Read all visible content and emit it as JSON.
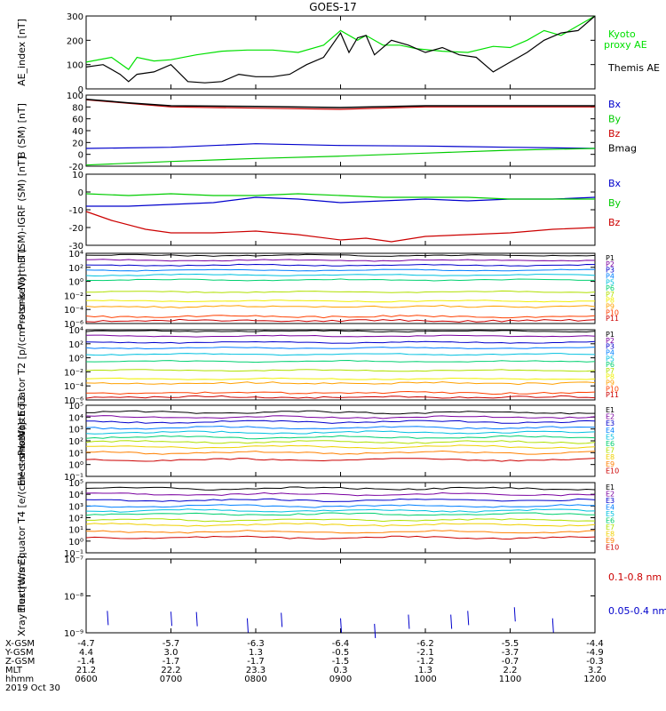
{
  "title": "GOES-17",
  "chart_data": [
    {
      "type": "line",
      "ylabel": "AE_index [nT]",
      "ylim": [
        0,
        300
      ],
      "yticks": [
        "0",
        "100",
        "200",
        "300"
      ],
      "series": [
        {
          "name": "Kyoto proxy AE",
          "color": "#00e000",
          "x": [
            6.0,
            6.3,
            6.5,
            6.6,
            6.8,
            7.0,
            7.3,
            7.6,
            7.9,
            8.2,
            8.5,
            8.8,
            9.0,
            9.2,
            9.3,
            9.5,
            9.7,
            9.9,
            10.2,
            10.5,
            10.8,
            11.0,
            11.2,
            11.4,
            11.6,
            11.8,
            12.0
          ],
          "values": [
            110,
            130,
            80,
            130,
            115,
            120,
            140,
            155,
            160,
            160,
            150,
            180,
            240,
            200,
            220,
            180,
            180,
            165,
            155,
            150,
            175,
            170,
            200,
            240,
            220,
            260,
            300
          ]
        },
        {
          "name": "Themis AE",
          "color": "#000000",
          "x": [
            6.0,
            6.2,
            6.4,
            6.5,
            6.6,
            6.8,
            7.0,
            7.2,
            7.4,
            7.6,
            7.8,
            8.0,
            8.2,
            8.4,
            8.6,
            8.8,
            9.0,
            9.1,
            9.2,
            9.3,
            9.4,
            9.6,
            9.8,
            10.0,
            10.2,
            10.4,
            10.6,
            10.8,
            11.0,
            11.2,
            11.4,
            11.6,
            11.8,
            12.0
          ],
          "values": [
            90,
            100,
            60,
            30,
            60,
            70,
            100,
            30,
            25,
            30,
            60,
            50,
            50,
            60,
            100,
            130,
            230,
            150,
            210,
            220,
            140,
            200,
            180,
            150,
            170,
            140,
            130,
            70,
            110,
            150,
            200,
            230,
            240,
            300
          ]
        }
      ],
      "legend": [
        "Kyoto proxy AE",
        "Themis AE"
      ]
    },
    {
      "type": "line",
      "ylabel": "B (SM) [nT]",
      "ylim": [
        -20,
        100
      ],
      "yticks": [
        "-20",
        "0",
        "20",
        "40",
        "60",
        "80",
        "100"
      ],
      "series": [
        {
          "name": "Bx",
          "color": "#0000cc",
          "x": [
            6,
            7,
            8,
            9,
            10,
            11,
            12
          ],
          "values": [
            10,
            12,
            18,
            15,
            14,
            12,
            10
          ]
        },
        {
          "name": "By",
          "color": "#00cc00",
          "x": [
            6,
            7,
            8,
            9,
            10,
            11,
            12
          ],
          "values": [
            -18,
            -12,
            -7,
            -3,
            2,
            7,
            10
          ]
        },
        {
          "name": "Bz",
          "color": "#cc0000",
          "x": [
            6,
            6.5,
            7,
            8,
            9,
            10,
            11,
            12
          ],
          "values": [
            92,
            86,
            80,
            78,
            76,
            80,
            80,
            80
          ]
        },
        {
          "name": "Bmag",
          "color": "#000000",
          "x": [
            6,
            6.5,
            7,
            8,
            9,
            10,
            11,
            12
          ],
          "values": [
            93,
            87,
            82,
            81,
            79,
            82,
            82,
            82
          ]
        }
      ]
    },
    {
      "type": "line",
      "ylabel": "B (SM)-IGRF (SM) [nT]",
      "ylim": [
        -30,
        10
      ],
      "yticks": [
        "-30",
        "-20",
        "-10",
        "0",
        "10"
      ],
      "series": [
        {
          "name": "Bx",
          "color": "#0000cc",
          "x": [
            6,
            6.5,
            7,
            7.5,
            8,
            8.5,
            9,
            9.5,
            10,
            10.5,
            11,
            11.5,
            12
          ],
          "values": [
            -8,
            -8,
            -7,
            -6,
            -3,
            -4,
            -6,
            -5,
            -4,
            -5,
            -4,
            -4,
            -3
          ]
        },
        {
          "name": "By",
          "color": "#00cc00",
          "x": [
            6,
            6.5,
            7,
            7.5,
            8,
            8.5,
            9,
            9.5,
            10,
            10.5,
            11,
            11.5,
            12
          ],
          "values": [
            -1,
            -2,
            -1,
            -2,
            -2,
            -1,
            -2,
            -3,
            -3,
            -3,
            -4,
            -4,
            -4
          ]
        },
        {
          "name": "Bz",
          "color": "#cc0000",
          "x": [
            6,
            6.3,
            6.7,
            7,
            7.5,
            8,
            8.5,
            9,
            9.3,
            9.6,
            10,
            10.5,
            11,
            11.5,
            12
          ],
          "values": [
            -11,
            -16,
            -21,
            -23,
            -23,
            -22,
            -24,
            -27,
            -26,
            -28,
            -25,
            -24,
            -23,
            -21,
            -20
          ]
        }
      ]
    },
    {
      "type": "line",
      "ylabel": "Protons North T1",
      "yscale": "log",
      "yrange_exp": [
        -6,
        4
      ],
      "yticks": [
        "10⁴",
        "10²",
        "10⁰",
        "10⁻²",
        "10⁻⁴",
        "10⁻⁶"
      ],
      "channels": [
        {
          "name": "P1",
          "color": "#000000",
          "level": 3.7
        },
        {
          "name": "P2",
          "color": "#7a00a0",
          "level": 3.0
        },
        {
          "name": "P3",
          "color": "#0000cc",
          "level": 2.3
        },
        {
          "name": "P4",
          "color": "#0080ff",
          "level": 1.6
        },
        {
          "name": "P5",
          "color": "#00c0e0",
          "level": 0.9
        },
        {
          "name": "P6",
          "color": "#00d070",
          "level": 0.2
        },
        {
          "name": "P7",
          "color": "#b0e000",
          "level": -1.5
        },
        {
          "name": "P8",
          "color": "#f0f000",
          "level": -2.8
        },
        {
          "name": "P9",
          "color": "#ffa000",
          "level": -3.6
        },
        {
          "name": "P10",
          "color": "#ff4000",
          "level": -5.0
        },
        {
          "name": "P11",
          "color": "#cc0000",
          "level": -5.6
        }
      ]
    },
    {
      "type": "line",
      "ylabel": "Protons Equator T2 [p/(cm²-s-sr-keV)]",
      "yscale": "log",
      "yrange_exp": [
        -6,
        4
      ],
      "yticks": [
        "10⁴",
        "10²",
        "10⁰",
        "10⁻²",
        "10⁻⁴",
        "10⁻⁶"
      ],
      "channels": [
        {
          "name": "P1",
          "color": "#000000",
          "level": 3.8
        },
        {
          "name": "P2",
          "color": "#7a00a0",
          "level": 3.1
        },
        {
          "name": "P3",
          "color": "#0000cc",
          "level": 2.2
        },
        {
          "name": "P4",
          "color": "#0080ff",
          "level": 1.4
        },
        {
          "name": "P5",
          "color": "#00c0e0",
          "level": 0.5
        },
        {
          "name": "P6",
          "color": "#00d070",
          "level": -0.5
        },
        {
          "name": "P7",
          "color": "#b0e000",
          "level": -1.8
        },
        {
          "name": "P8",
          "color": "#f0f000",
          "level": -3.0
        },
        {
          "name": "P9",
          "color": "#ffa000",
          "level": -3.6
        },
        {
          "name": "P10",
          "color": "#ff4000",
          "level": -5.0
        },
        {
          "name": "P11",
          "color": "#cc0000",
          "level": -5.6
        }
      ]
    },
    {
      "type": "line",
      "ylabel": "Electrons North T3",
      "yscale": "log",
      "yrange_exp": [
        -1,
        5
      ],
      "yticks": [
        "10⁵",
        "10⁴",
        "10³",
        "10²",
        "10¹",
        "10⁰",
        "10⁻¹"
      ],
      "channels": [
        {
          "name": "E1",
          "color": "#000000",
          "level": 4.4
        },
        {
          "name": "E2",
          "color": "#7a00a0",
          "level": 4.0
        },
        {
          "name": "E3",
          "color": "#0000cc",
          "level": 3.6
        },
        {
          "name": "E4",
          "color": "#0080ff",
          "level": 3.1
        },
        {
          "name": "E5",
          "color": "#00c0e0",
          "level": 2.7
        },
        {
          "name": "E6",
          "color": "#00d070",
          "level": 2.3
        },
        {
          "name": "E7",
          "color": "#b0e000",
          "level": 1.9
        },
        {
          "name": "E8",
          "color": "#f0d000",
          "level": 1.5
        },
        {
          "name": "E9",
          "color": "#ff8000",
          "level": 1.0
        },
        {
          "name": "E10",
          "color": "#cc0000",
          "level": 0.4
        }
      ]
    },
    {
      "type": "line",
      "ylabel": "Electrons Equator T4 [e/(cm²-s-sr-keV)]",
      "yscale": "log",
      "yrange_exp": [
        -1,
        5
      ],
      "yticks": [
        "10⁵",
        "10⁴",
        "10³",
        "10²",
        "10¹",
        "10⁰",
        "10⁻¹"
      ],
      "channels": [
        {
          "name": "E1",
          "color": "#000000",
          "level": 4.5
        },
        {
          "name": "E2",
          "color": "#7a00a0",
          "level": 4.0
        },
        {
          "name": "E3",
          "color": "#0000cc",
          "level": 3.5
        },
        {
          "name": "E4",
          "color": "#0080ff",
          "level": 3.0
        },
        {
          "name": "E5",
          "color": "#00c0e0",
          "level": 2.6
        },
        {
          "name": "E6",
          "color": "#00d070",
          "level": 2.3
        },
        {
          "name": "E7",
          "color": "#b0e000",
          "level": 1.8
        },
        {
          "name": "E8",
          "color": "#f0d000",
          "level": 1.4
        },
        {
          "name": "E9",
          "color": "#ff8000",
          "level": 0.8
        },
        {
          "name": "E10",
          "color": "#cc0000",
          "level": 0.3
        }
      ]
    },
    {
      "type": "scatter",
      "ylabel": "Xray flux [W/m²]",
      "yscale": "log",
      "yrange_exp": [
        -9,
        -7
      ],
      "yticks": [
        "10⁻⁷",
        "10⁻⁸",
        "10⁻⁹"
      ],
      "series": [
        {
          "name": "0.1-0.8 nm",
          "color": "#cc0000",
          "x": [],
          "values": []
        },
        {
          "name": "0.05-0.4 nm",
          "color": "#0000cc",
          "x": [
            6.25,
            7.0,
            7.3,
            7.9,
            8.3,
            9.0,
            9.4,
            9.8,
            10.3,
            10.5,
            11.05,
            11.5
          ],
          "values": [
            -8.6,
            -8.62,
            -8.63,
            -8.8,
            -8.65,
            -8.8,
            -8.95,
            -8.7,
            -8.7,
            -8.6,
            -8.5,
            -8.8
          ]
        }
      ]
    }
  ],
  "xaxis": {
    "xlim": [
      6,
      12
    ],
    "rows": [
      {
        "label": "X-GSM",
        "values": [
          "-4.7",
          "-5.7",
          "-6.3",
          "-6.4",
          "-6.2",
          "-5.5",
          "-4.4"
        ]
      },
      {
        "label": "Y-GSM",
        "values": [
          "4.4",
          "3.0",
          "1.3",
          "-0.5",
          "-2.1",
          "-3.7",
          "-4.9"
        ]
      },
      {
        "label": "Z-GSM",
        "values": [
          "-1.4",
          "-1.7",
          "-1.7",
          "-1.5",
          "-1.2",
          "-0.7",
          "-0.3"
        ]
      },
      {
        "label": "MLT",
        "values": [
          "21.2",
          "22.2",
          "23.3",
          "0.3",
          "1.3",
          "2.2",
          "3.2"
        ]
      },
      {
        "label": "hhmm",
        "values": [
          "0600",
          "0700",
          "0800",
          "0900",
          "1000",
          "1100",
          "1200"
        ]
      }
    ],
    "date": "2019 Oct 30"
  }
}
